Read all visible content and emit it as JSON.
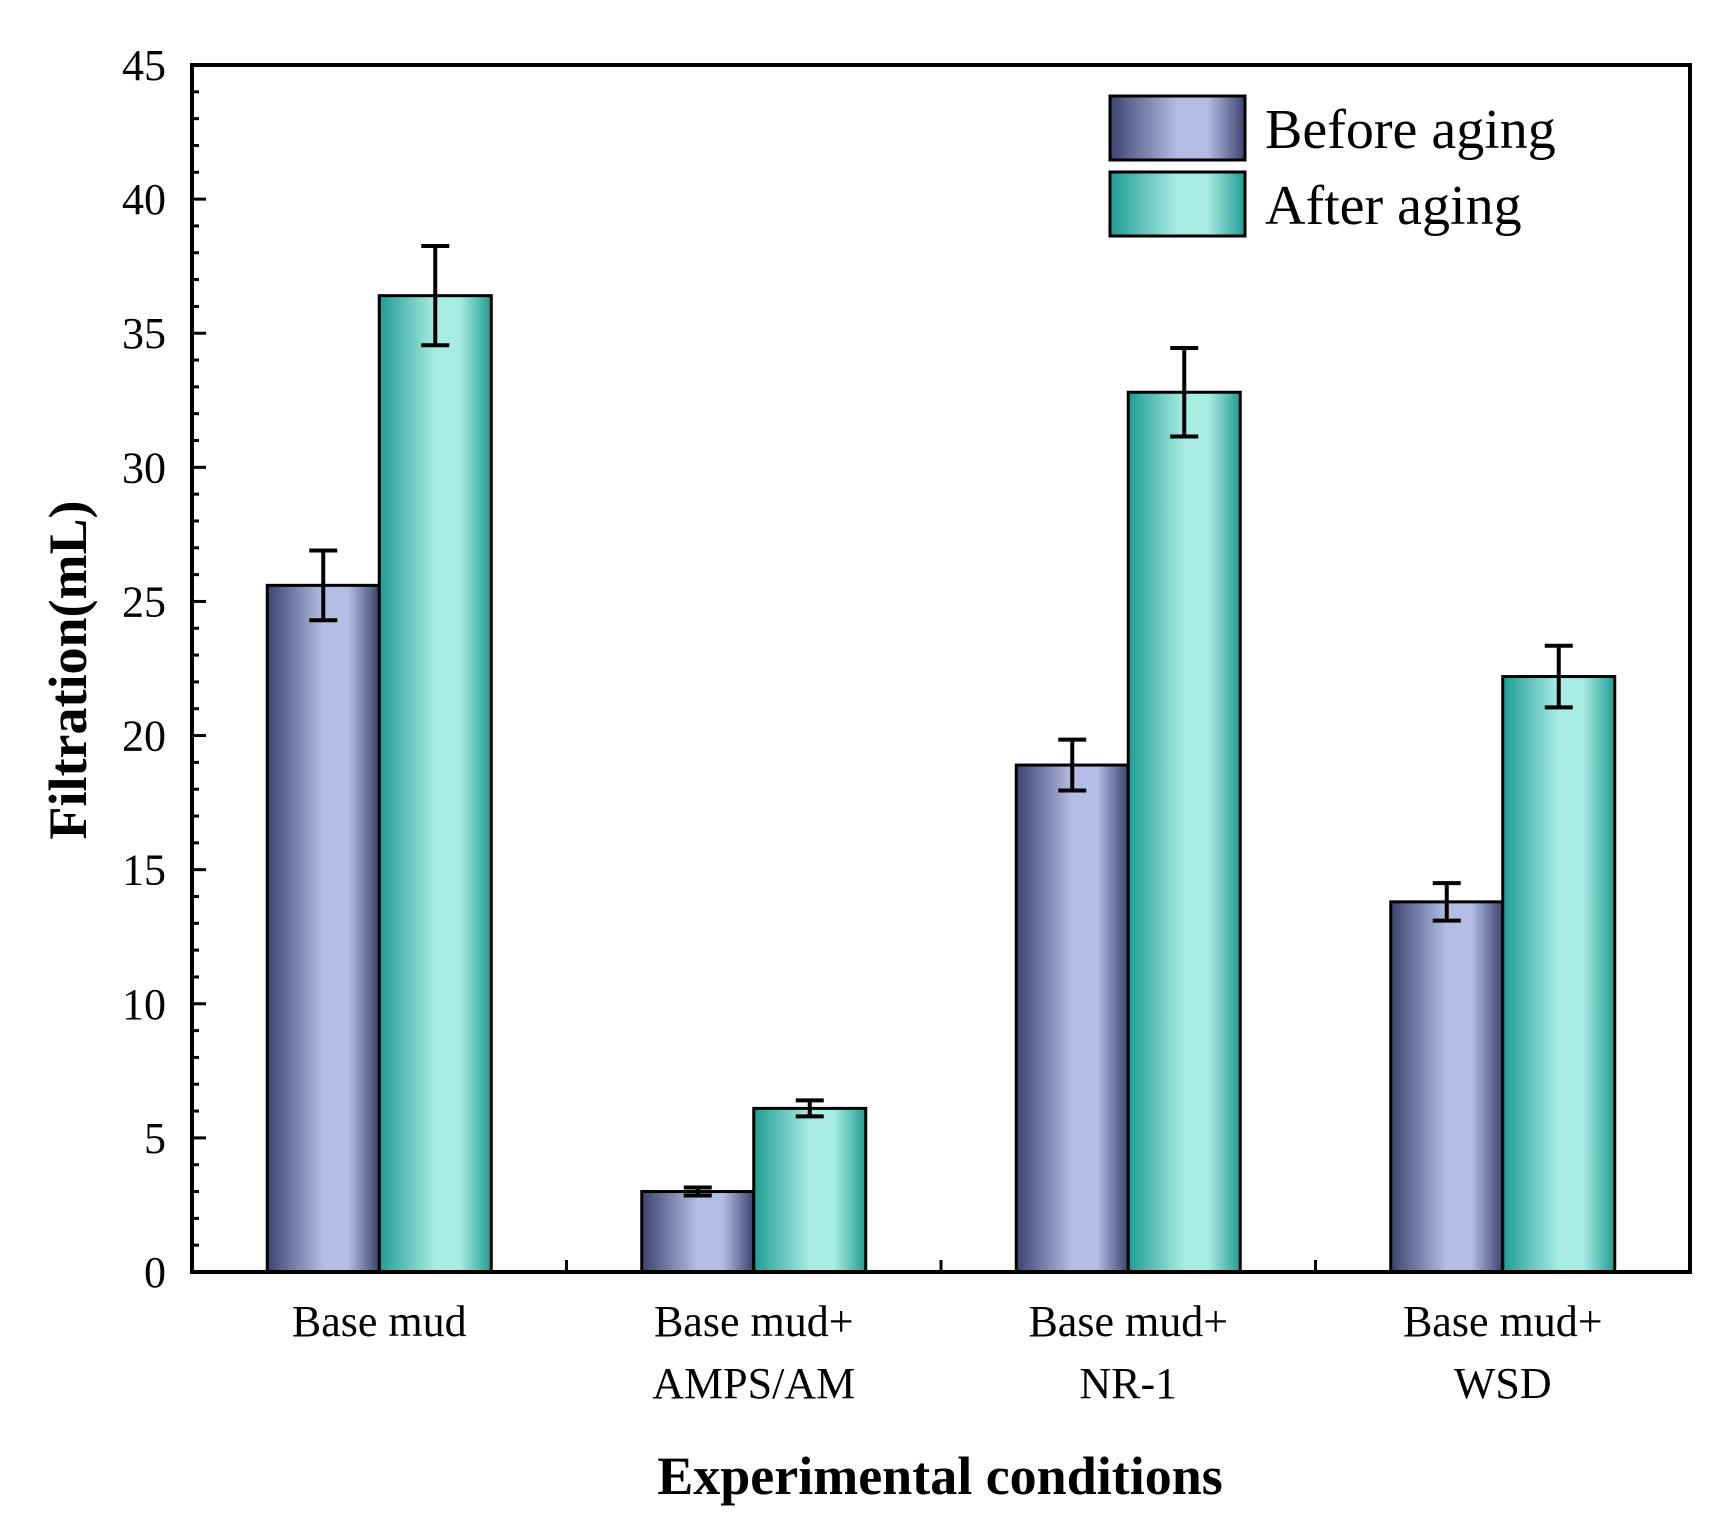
{
  "chart_data": {
    "type": "bar",
    "xlabel": "Experimental conditions",
    "ylabel": "Filtration(mL)",
    "ylim": [
      0,
      45
    ],
    "yticks": [
      0,
      5,
      10,
      15,
      20,
      25,
      30,
      35,
      40,
      45
    ],
    "categories": [
      [
        "Base mud"
      ],
      [
        "Base mud+",
        "AMPS/AM"
      ],
      [
        "Base mud+",
        "NR-1"
      ],
      [
        "Base mud+",
        "WSD"
      ]
    ],
    "series": [
      {
        "name": "Before aging",
        "values": [
          25.6,
          3.0,
          18.9,
          13.8
        ],
        "errors": [
          1.3,
          0.15,
          0.95,
          0.7
        ],
        "color_dark": "#3b4470",
        "color_light": "#b4bde3"
      },
      {
        "name": "After aging",
        "values": [
          36.4,
          6.1,
          32.8,
          22.2
        ],
        "errors": [
          1.85,
          0.3,
          1.65,
          1.15
        ],
        "color_dark": "#1f9c92",
        "color_light": "#a8ece4"
      }
    ],
    "legend_position": "top-right",
    "grid": false
  }
}
